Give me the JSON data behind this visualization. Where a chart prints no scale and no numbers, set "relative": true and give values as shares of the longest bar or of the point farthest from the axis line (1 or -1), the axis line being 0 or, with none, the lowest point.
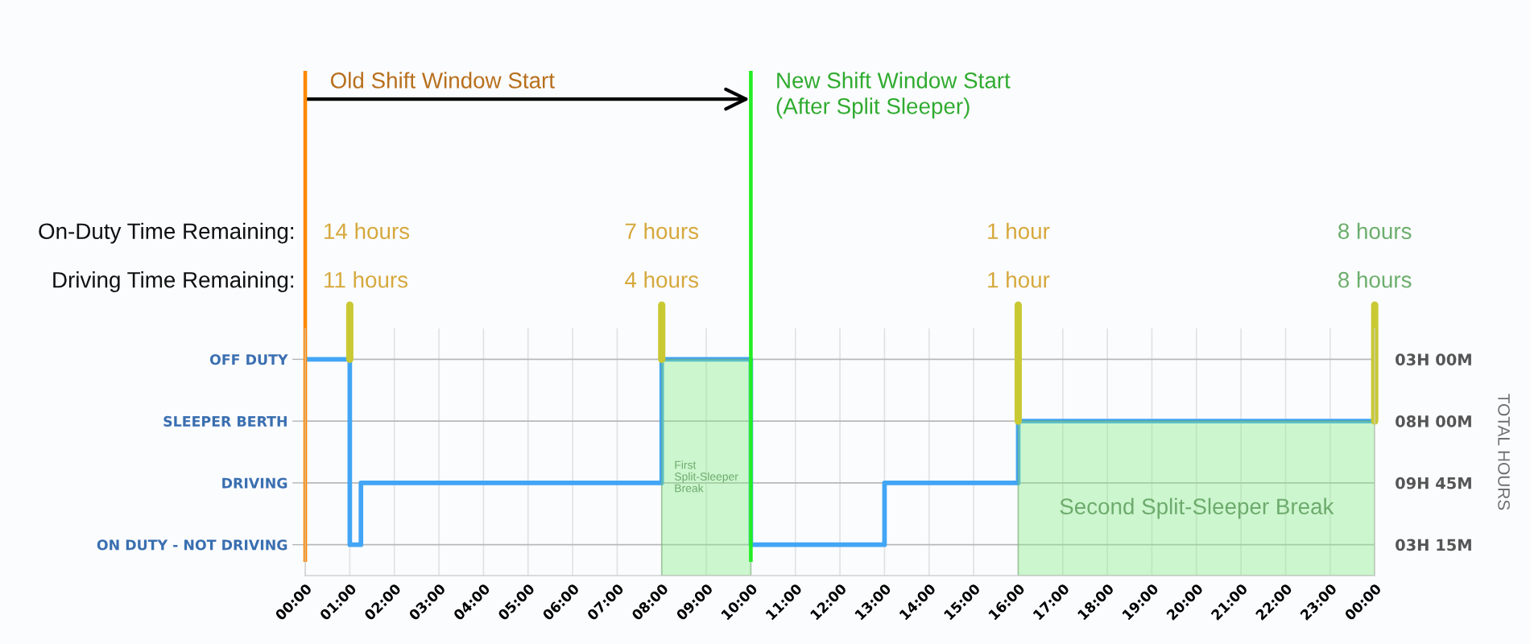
{
  "chart_data": {
    "type": "step",
    "relative": true,
    "x": [
      0,
      1,
      1.25,
      8,
      10,
      13,
      16,
      24
    ],
    "values": [
      1,
      0,
      0.3333,
      1,
      0,
      0.3333,
      0.6667,
      0.6667
    ],
    "color": "#42a5f5",
    "y_categories": [
      "OFF DUTY",
      "SLEEPER BERTH",
      "DRIVING",
      "ON DUTY - NOT DRIVING"
    ],
    "y2_categories": [
      "03H 00M",
      "08H 00M",
      "09H 45M",
      "03H 15M"
    ],
    "xlim": [
      0,
      24
    ],
    "xticks": [
      {
        "value": 0,
        "label": "00:00"
      },
      {
        "value": 1,
        "label": "01:00"
      },
      {
        "value": 2,
        "label": "02:00"
      },
      {
        "value": 3,
        "label": "03:00"
      },
      {
        "value": 4,
        "label": "04:00"
      },
      {
        "value": 5,
        "label": "05:00"
      },
      {
        "value": 6,
        "label": "06:00"
      },
      {
        "value": 7,
        "label": "07:00"
      },
      {
        "value": 8,
        "label": "08:00"
      },
      {
        "value": 9,
        "label": "09:00"
      },
      {
        "value": 10,
        "label": "10:00"
      },
      {
        "value": 11,
        "label": "11:00"
      },
      {
        "value": 12,
        "label": "12:00"
      },
      {
        "value": 13,
        "label": "13:00"
      },
      {
        "value": 14,
        "label": "14:00"
      },
      {
        "value": 15,
        "label": "15:00"
      },
      {
        "value": 16,
        "label": "16:00"
      },
      {
        "value": 17,
        "label": "17:00"
      },
      {
        "value": 18,
        "label": "18:00"
      },
      {
        "value": 19,
        "label": "19:00"
      },
      {
        "value": 20,
        "label": "20:00"
      },
      {
        "value": 21,
        "label": "21:00"
      },
      {
        "value": 22,
        "label": "22:00"
      },
      {
        "value": 23,
        "label": "23:00"
      },
      {
        "value": 24,
        "label": "00:00"
      }
    ],
    "grid": "x",
    "ref_lines": [
      {
        "axis": "x",
        "value": 0,
        "label": "Old Shift Window Start",
        "color": "#ff8800"
      },
      {
        "axis": "x",
        "value": 10,
        "label": "New Shift Window Start\n(After Split Sleeper)",
        "color": "#22ee22"
      },
      {
        "axis": "y",
        "value": 1,
        "color": "#b8b8b8"
      },
      {
        "axis": "y",
        "value": 0.6667,
        "color": "#b8b8b8"
      },
      {
        "axis": "y",
        "value": 0.3333,
        "color": "#b8b8b8"
      },
      {
        "axis": "y",
        "value": 0,
        "color": "#b8b8b8"
      }
    ],
    "bands": [
      {
        "axis": "x",
        "from": 8,
        "to": 10,
        "label": "First\nSplit-Sleeper\nBreak",
        "color": "#88ee88"
      },
      {
        "axis": "x",
        "from": 16,
        "to": 24,
        "label": "Second Split-Sleeper Break",
        "color": "#88ee88"
      }
    ],
    "annotations": [
      "On-Duty Time Remaining:",
      "Driving Time Remaining:",
      "TOTAL HOURS",
      "14 hours",
      "7 hours",
      "1 hour",
      "8 hours",
      {
        "text": "11 hours",
        "x": 1,
        "y": 1
      },
      {
        "text": "4 hours",
        "x": 8,
        "y": 1
      },
      {
        "text": "1 hour",
        "x": 16,
        "y": 0.6667
      },
      {
        "text": "8 hours",
        "x": 24,
        "y": 0.6667
      }
    ]
  }
}
